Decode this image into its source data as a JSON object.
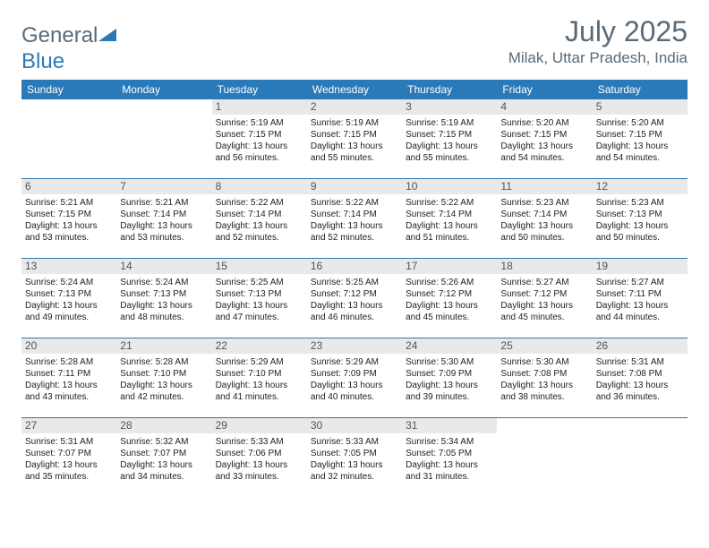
{
  "logo": {
    "part1": "General",
    "part2": "Blue"
  },
  "title": "July 2025",
  "location": "Milak, Uttar Pradesh, India",
  "colors": {
    "header_bg": "#2a7ab9",
    "header_text": "#ffffff",
    "daynum_bg": "#e9e9e9",
    "text_muted": "#5a6a78",
    "rule": "#2a7ab9"
  },
  "day_headers": [
    "Sunday",
    "Monday",
    "Tuesday",
    "Wednesday",
    "Thursday",
    "Friday",
    "Saturday"
  ],
  "weeks": [
    [
      {
        "day": null
      },
      {
        "day": null
      },
      {
        "day": 1,
        "sunrise": "5:19 AM",
        "sunset": "7:15 PM",
        "daylight": "13 hours and 56 minutes."
      },
      {
        "day": 2,
        "sunrise": "5:19 AM",
        "sunset": "7:15 PM",
        "daylight": "13 hours and 55 minutes."
      },
      {
        "day": 3,
        "sunrise": "5:19 AM",
        "sunset": "7:15 PM",
        "daylight": "13 hours and 55 minutes."
      },
      {
        "day": 4,
        "sunrise": "5:20 AM",
        "sunset": "7:15 PM",
        "daylight": "13 hours and 54 minutes."
      },
      {
        "day": 5,
        "sunrise": "5:20 AM",
        "sunset": "7:15 PM",
        "daylight": "13 hours and 54 minutes."
      }
    ],
    [
      {
        "day": 6,
        "sunrise": "5:21 AM",
        "sunset": "7:15 PM",
        "daylight": "13 hours and 53 minutes."
      },
      {
        "day": 7,
        "sunrise": "5:21 AM",
        "sunset": "7:14 PM",
        "daylight": "13 hours and 53 minutes."
      },
      {
        "day": 8,
        "sunrise": "5:22 AM",
        "sunset": "7:14 PM",
        "daylight": "13 hours and 52 minutes."
      },
      {
        "day": 9,
        "sunrise": "5:22 AM",
        "sunset": "7:14 PM",
        "daylight": "13 hours and 52 minutes."
      },
      {
        "day": 10,
        "sunrise": "5:22 AM",
        "sunset": "7:14 PM",
        "daylight": "13 hours and 51 minutes."
      },
      {
        "day": 11,
        "sunrise": "5:23 AM",
        "sunset": "7:14 PM",
        "daylight": "13 hours and 50 minutes."
      },
      {
        "day": 12,
        "sunrise": "5:23 AM",
        "sunset": "7:13 PM",
        "daylight": "13 hours and 50 minutes."
      }
    ],
    [
      {
        "day": 13,
        "sunrise": "5:24 AM",
        "sunset": "7:13 PM",
        "daylight": "13 hours and 49 minutes."
      },
      {
        "day": 14,
        "sunrise": "5:24 AM",
        "sunset": "7:13 PM",
        "daylight": "13 hours and 48 minutes."
      },
      {
        "day": 15,
        "sunrise": "5:25 AM",
        "sunset": "7:13 PM",
        "daylight": "13 hours and 47 minutes."
      },
      {
        "day": 16,
        "sunrise": "5:25 AM",
        "sunset": "7:12 PM",
        "daylight": "13 hours and 46 minutes."
      },
      {
        "day": 17,
        "sunrise": "5:26 AM",
        "sunset": "7:12 PM",
        "daylight": "13 hours and 45 minutes."
      },
      {
        "day": 18,
        "sunrise": "5:27 AM",
        "sunset": "7:12 PM",
        "daylight": "13 hours and 45 minutes."
      },
      {
        "day": 19,
        "sunrise": "5:27 AM",
        "sunset": "7:11 PM",
        "daylight": "13 hours and 44 minutes."
      }
    ],
    [
      {
        "day": 20,
        "sunrise": "5:28 AM",
        "sunset": "7:11 PM",
        "daylight": "13 hours and 43 minutes."
      },
      {
        "day": 21,
        "sunrise": "5:28 AM",
        "sunset": "7:10 PM",
        "daylight": "13 hours and 42 minutes."
      },
      {
        "day": 22,
        "sunrise": "5:29 AM",
        "sunset": "7:10 PM",
        "daylight": "13 hours and 41 minutes."
      },
      {
        "day": 23,
        "sunrise": "5:29 AM",
        "sunset": "7:09 PM",
        "daylight": "13 hours and 40 minutes."
      },
      {
        "day": 24,
        "sunrise": "5:30 AM",
        "sunset": "7:09 PM",
        "daylight": "13 hours and 39 minutes."
      },
      {
        "day": 25,
        "sunrise": "5:30 AM",
        "sunset": "7:08 PM",
        "daylight": "13 hours and 38 minutes."
      },
      {
        "day": 26,
        "sunrise": "5:31 AM",
        "sunset": "7:08 PM",
        "daylight": "13 hours and 36 minutes."
      }
    ],
    [
      {
        "day": 27,
        "sunrise": "5:31 AM",
        "sunset": "7:07 PM",
        "daylight": "13 hours and 35 minutes."
      },
      {
        "day": 28,
        "sunrise": "5:32 AM",
        "sunset": "7:07 PM",
        "daylight": "13 hours and 34 minutes."
      },
      {
        "day": 29,
        "sunrise": "5:33 AM",
        "sunset": "7:06 PM",
        "daylight": "13 hours and 33 minutes."
      },
      {
        "day": 30,
        "sunrise": "5:33 AM",
        "sunset": "7:05 PM",
        "daylight": "13 hours and 32 minutes."
      },
      {
        "day": 31,
        "sunrise": "5:34 AM",
        "sunset": "7:05 PM",
        "daylight": "13 hours and 31 minutes."
      },
      {
        "day": null
      },
      {
        "day": null
      }
    ]
  ],
  "labels": {
    "sunrise": "Sunrise:",
    "sunset": "Sunset:",
    "daylight": "Daylight:"
  }
}
